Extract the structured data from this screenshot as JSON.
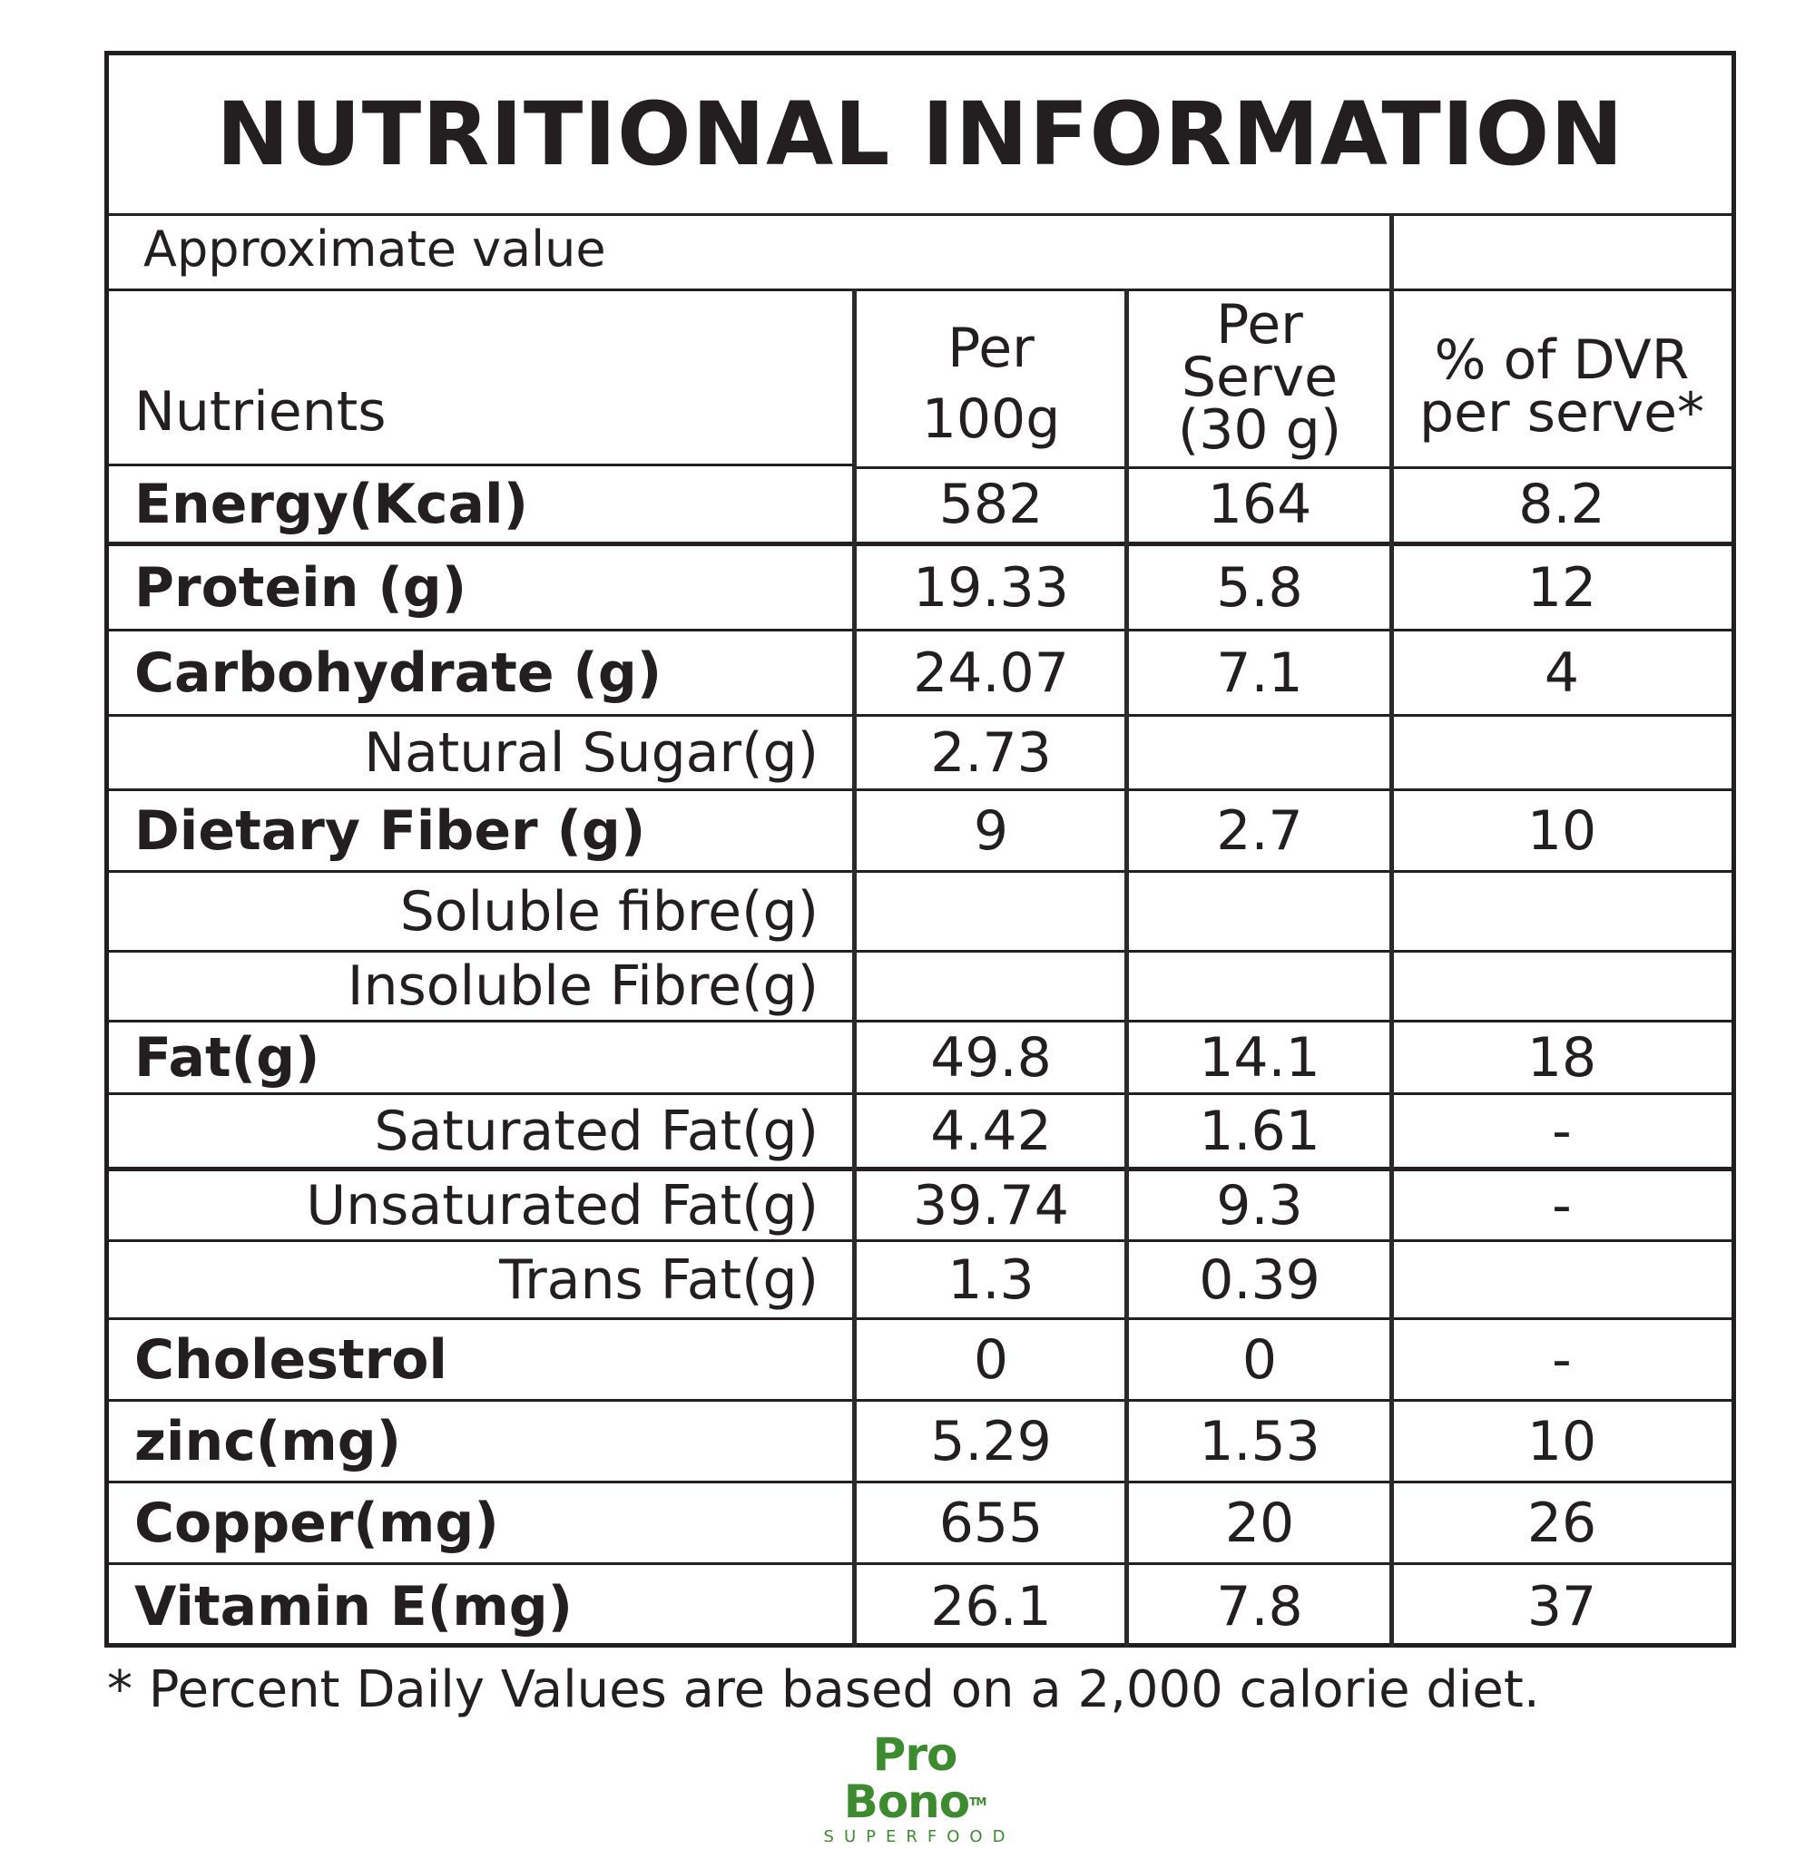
{
  "title": "NUTRITIONAL INFORMATION",
  "approx_label": "Approximate value",
  "headers": {
    "nutrients": "Nutrients",
    "per100_l1": "Per",
    "per100_l2": "100g",
    "perserve_l1": "Per",
    "perserve_l2": "Serve",
    "perserve_l3": "(30 g)",
    "dvr_l1": "% of DVR",
    "dvr_l2": "per serve*"
  },
  "rows": [
    {
      "name": "Energy(Kcal)",
      "v1": "582",
      "v2": "164",
      "v3": "8.2"
    },
    {
      "name": "Protein (g)",
      "v1": "19.33",
      "v2": "5.8",
      "v3": "12"
    },
    {
      "name": "Carbohydrate (g)",
      "v1": "24.07",
      "v2": "7.1",
      "v3": "4"
    },
    {
      "name": "Natural Sugar(g)",
      "v1": "2.73",
      "v2": "",
      "v3": ""
    },
    {
      "name": "Dietary Fiber (g)",
      "v1": "9",
      "v2": "2.7",
      "v3": "10"
    },
    {
      "name": "Soluble fibre(g)",
      "v1": "",
      "v2": "",
      "v3": ""
    },
    {
      "name": "Insoluble Fibre(g)",
      "v1": "",
      "v2": "",
      "v3": ""
    },
    {
      "name": "Fat(g)",
      "v1": "49.8",
      "v2": "14.1",
      "v3": "18"
    },
    {
      "name": "Saturated Fat(g)",
      "v1": "4.42",
      "v2": "1.61",
      "v3": "-"
    },
    {
      "name": "Unsaturated Fat(g)",
      "v1": "39.74",
      "v2": "9.3",
      "v3": "-"
    },
    {
      "name": "Trans Fat(g)",
      "v1": "1.3",
      "v2": "0.39",
      "v3": ""
    },
    {
      "name": "Cholestrol",
      "v1": "0",
      "v2": "0",
      "v3": "-"
    },
    {
      "name": "zinc(mg)",
      "v1": "5.29",
      "v2": "1.53",
      "v3": "10"
    },
    {
      "name": "Copper(mg)",
      "v1": "655",
      "v2": "20",
      "v3": "26"
    },
    {
      "name": "Vitamin E(mg)",
      "v1": "26.1",
      "v2": "7.8",
      "v3": "37"
    }
  ],
  "footnote": "* Percent Daily Values are based on a 2,000 calorie diet.",
  "logo": {
    "main": "Pro Bono",
    "tm": "TM",
    "sub": "SUPERFOOD",
    "color": "#3d8b2f"
  }
}
